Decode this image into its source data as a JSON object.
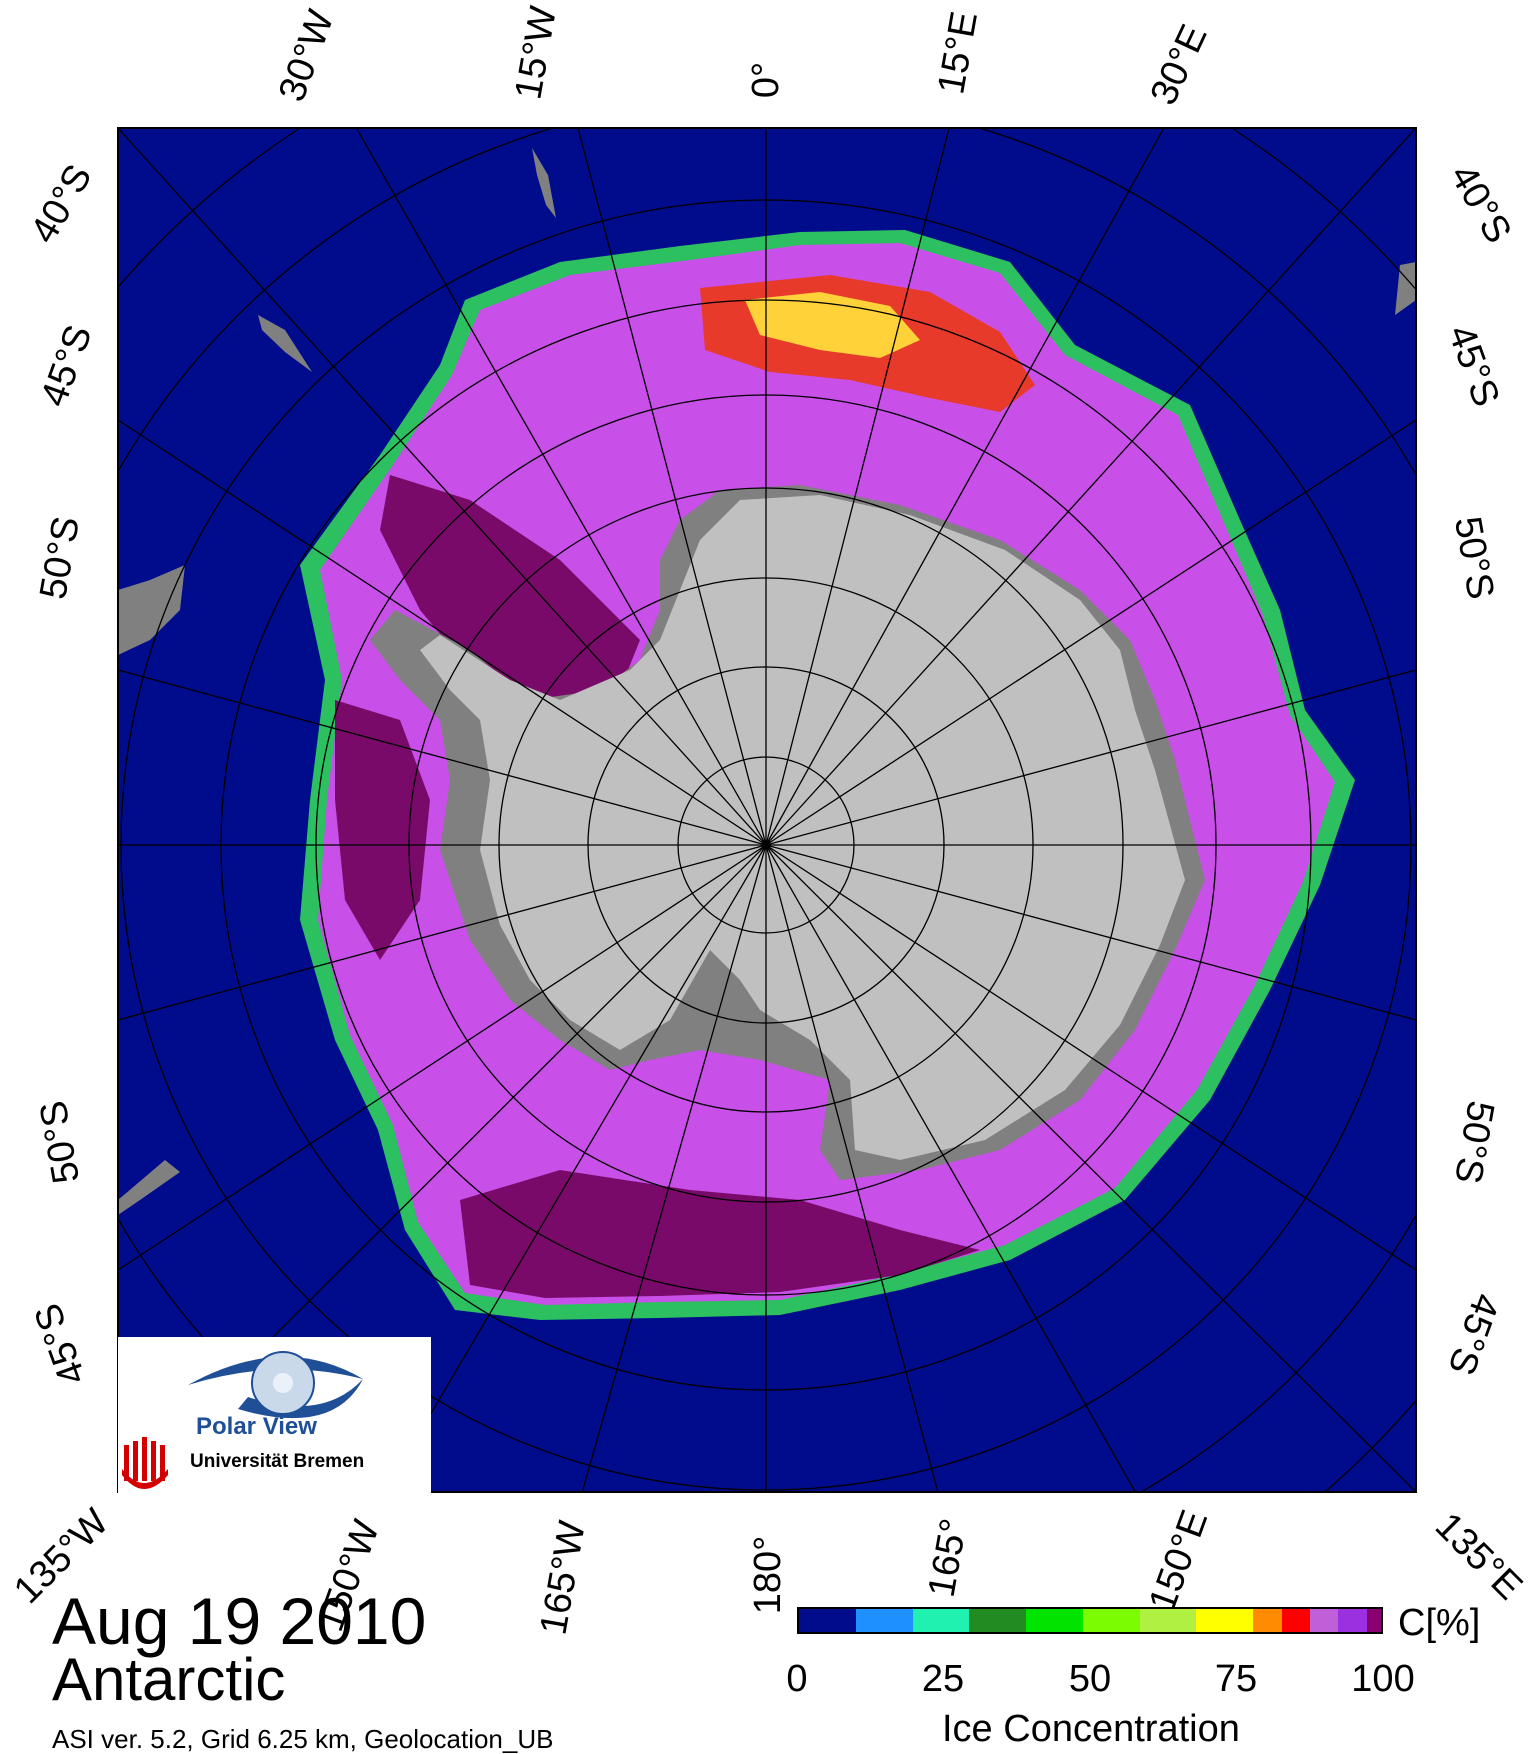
{
  "map": {
    "top_labels": [
      "30°W",
      "15°W",
      "0°",
      "15°E",
      "30°E"
    ],
    "bottom_labels": [
      "135°W",
      "150°W",
      "165°W",
      "180°",
      "165°",
      "150°E",
      "135°E"
    ],
    "left_lat_labels": [
      "40°S",
      "45°S",
      "50°S",
      "50°S",
      "45°S"
    ],
    "right_lat_labels": [
      "40°S",
      "45°S",
      "50°S",
      "50°S",
      "45°S"
    ],
    "colors": {
      "ocean": "#000c8c",
      "land": "#c0c0c0",
      "shelf": "#808080",
      "grid": "#000000"
    }
  },
  "caption": {
    "date": "Aug 19 2010",
    "region": "Antarctic",
    "info": "ASI ver. 5.2,  Grid 6.25 km, Geolocation_UB"
  },
  "logo": {
    "title": "Polar View",
    "university": "Universität Bremen"
  },
  "legend": {
    "unit": "C[%]",
    "title": "Ice Concentration",
    "ticks": [
      "0",
      "25",
      "50",
      "75",
      "100"
    ],
    "colors": [
      "#000c8c",
      "#1e90ff",
      "#20f0b0",
      "#228b22",
      "#00e400",
      "#7cfc00",
      "#b0f040",
      "#ffff00",
      "#ff8c00",
      "#ff0000",
      "#c060d8",
      "#9a30e0",
      "#8b0070"
    ]
  }
}
